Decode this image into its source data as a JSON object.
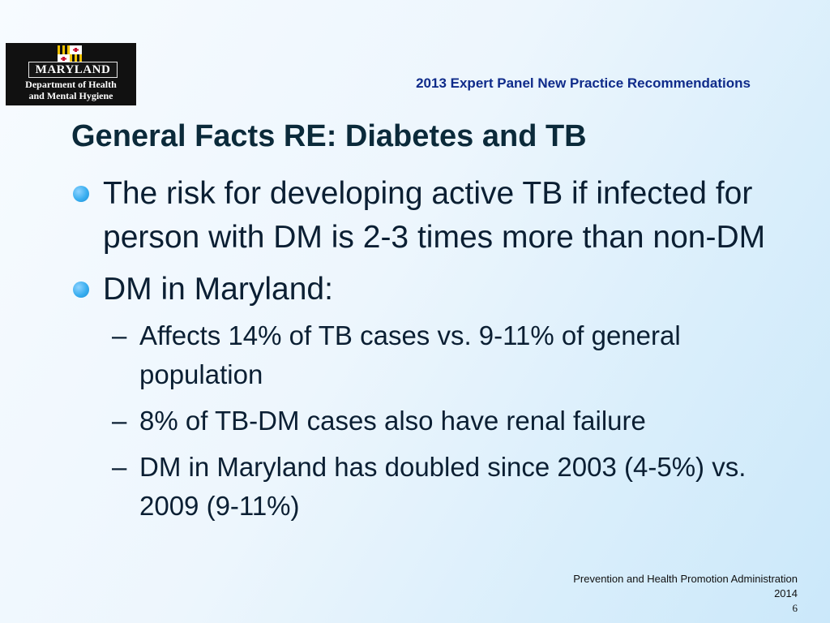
{
  "logo": {
    "name": "MARYLAND",
    "dept_line1": "Department of Health",
    "dept_line2": "and Mental Hygiene"
  },
  "header": {
    "title": "2013 Expert Panel New Practice Recommendations"
  },
  "slide": {
    "title": "General Facts RE: Diabetes and TB",
    "bullets": [
      {
        "text": "The risk for developing active TB if infected for person with DM is 2-3 times more than non-DM"
      },
      {
        "text": "DM in Maryland:",
        "sub": [
          "Affects 14% of TB cases vs. 9-11% of general  population",
          "8% of TB-DM cases also have renal failure",
          "DM in Maryland has doubled since 2003 (4-5%) vs. 2009 (9-11%)"
        ]
      }
    ]
  },
  "footer": {
    "org": "Prevention and Health Promotion Administration",
    "year": "2014",
    "page": "6"
  },
  "colors": {
    "header": "#0f2b8a",
    "title": "#0b2a3a",
    "bullet": "#39aef0",
    "text": "#0b1f33"
  }
}
